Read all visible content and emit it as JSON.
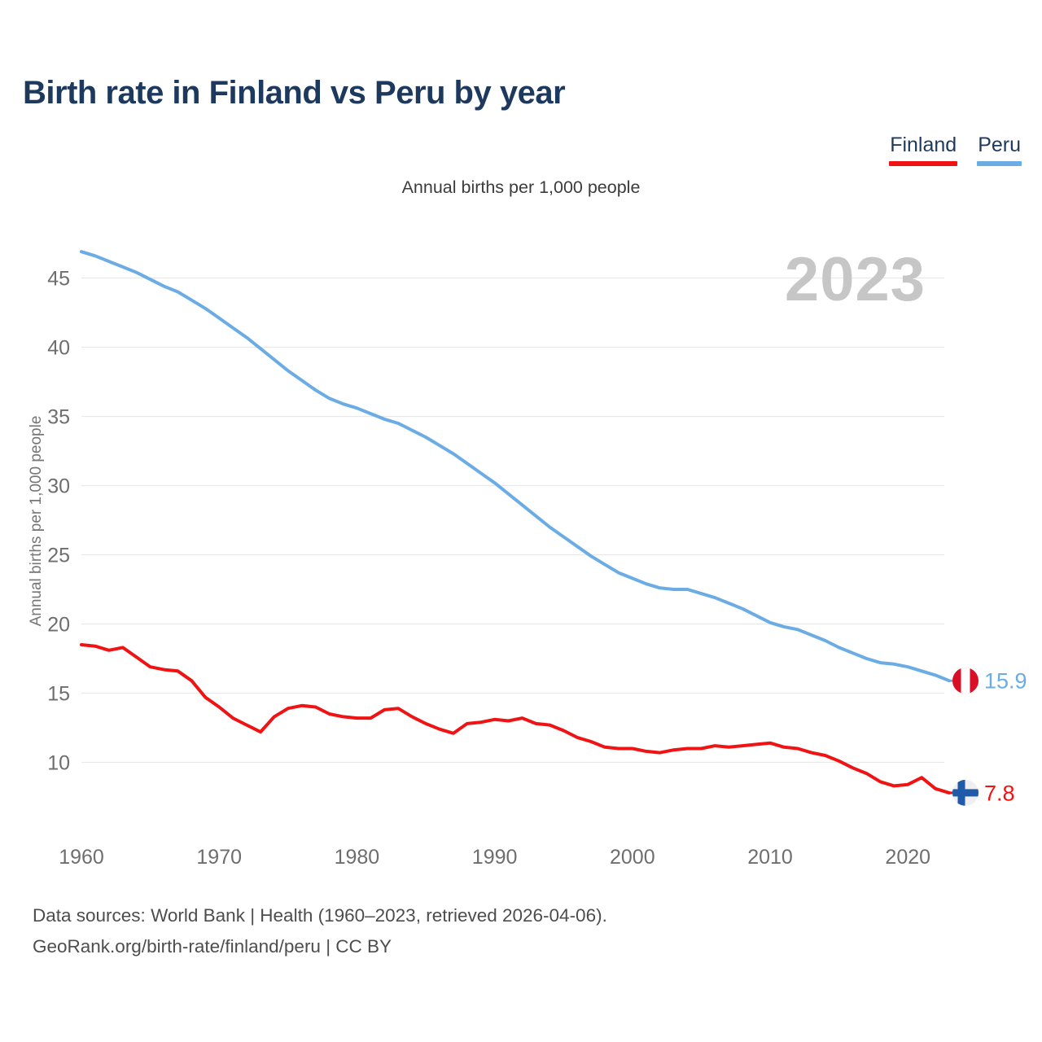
{
  "header": {
    "title": "Birth rate in Finland vs Peru by year"
  },
  "legend": {
    "items": [
      {
        "label": "Finland",
        "color": "#f01313"
      },
      {
        "label": "Peru",
        "color": "#6cace4"
      }
    ]
  },
  "subtitle": "Annual births per 1,000 people",
  "watermark": "2023",
  "chart_data": {
    "type": "line",
    "title": "Birth rate in Finland vs Peru by year",
    "xlabel": "",
    "ylabel": "Annual births per 1,000 people",
    "grid": true,
    "legend_position": "top-right",
    "xlim": [
      1960,
      2023
    ],
    "ylim": [
      7,
      48
    ],
    "xticks": [
      1960,
      1970,
      1980,
      1990,
      2000,
      2010,
      2020
    ],
    "yticks": [
      10,
      15,
      20,
      25,
      30,
      35,
      40,
      45
    ],
    "x": [
      1960,
      1961,
      1962,
      1963,
      1964,
      1965,
      1966,
      1967,
      1968,
      1969,
      1970,
      1971,
      1972,
      1973,
      1974,
      1975,
      1976,
      1977,
      1978,
      1979,
      1980,
      1981,
      1982,
      1983,
      1984,
      1985,
      1986,
      1987,
      1988,
      1989,
      1990,
      1991,
      1992,
      1993,
      1994,
      1995,
      1996,
      1997,
      1998,
      1999,
      2000,
      2001,
      2002,
      2003,
      2004,
      2005,
      2006,
      2007,
      2008,
      2009,
      2010,
      2011,
      2012,
      2013,
      2014,
      2015,
      2016,
      2017,
      2018,
      2019,
      2020,
      2021,
      2022,
      2023
    ],
    "series": [
      {
        "name": "Peru",
        "color": "#6cace4",
        "end_label": "15.9",
        "end_value": 15.9,
        "flag": "peru",
        "values": [
          46.9,
          46.6,
          46.2,
          45.8,
          45.4,
          44.9,
          44.4,
          44.0,
          43.4,
          42.8,
          42.1,
          41.4,
          40.7,
          39.9,
          39.1,
          38.3,
          37.6,
          36.9,
          36.3,
          35.9,
          35.6,
          35.2,
          34.8,
          34.5,
          34.0,
          33.5,
          32.9,
          32.3,
          31.6,
          30.9,
          30.2,
          29.4,
          28.6,
          27.8,
          27.0,
          26.3,
          25.6,
          24.9,
          24.3,
          23.7,
          23.3,
          22.9,
          22.6,
          22.5,
          22.5,
          22.2,
          21.9,
          21.5,
          21.1,
          20.6,
          20.1,
          19.8,
          19.6,
          19.2,
          18.8,
          18.3,
          17.9,
          17.5,
          17.2,
          17.1,
          16.9,
          16.6,
          16.3,
          15.9
        ]
      },
      {
        "name": "Finland",
        "color": "#f01313",
        "end_label": "7.8",
        "end_value": 7.8,
        "flag": "finland",
        "values": [
          18.5,
          18.4,
          18.1,
          18.3,
          17.6,
          16.9,
          16.7,
          16.6,
          15.9,
          14.7,
          14.0,
          13.2,
          12.7,
          12.2,
          13.3,
          13.9,
          14.1,
          14.0,
          13.5,
          13.3,
          13.2,
          13.2,
          13.8,
          13.9,
          13.3,
          12.8,
          12.4,
          12.1,
          12.8,
          12.9,
          13.1,
          13.0,
          13.2,
          12.8,
          12.7,
          12.3,
          11.8,
          11.5,
          11.1,
          11.0,
          11.0,
          10.8,
          10.7,
          10.9,
          11.0,
          11.0,
          11.2,
          11.1,
          11.2,
          11.3,
          11.4,
          11.1,
          11.0,
          10.7,
          10.5,
          10.1,
          9.6,
          9.2,
          8.6,
          8.3,
          8.4,
          8.9,
          8.1,
          7.8
        ]
      }
    ]
  },
  "icons": {
    "peru_flag": {
      "band_red": "#d80f26",
      "band_white": "#ffffff"
    },
    "finland_flag": {
      "background": "#efefef",
      "cross_blue": "#1f5ba8"
    }
  },
  "colors": {
    "title": "#1d3a5e",
    "gridline": "#e9e9e9",
    "tick_text": "#6e6e6e",
    "watermark": "#c6c6c6",
    "footer_text": "#4d4d4d"
  },
  "footer": {
    "line1": "Data sources: World Bank | Health (1960–2023, retrieved 2026-04-06).",
    "line2": "GeoRank.org/birth-rate/finland/peru | CC BY"
  }
}
